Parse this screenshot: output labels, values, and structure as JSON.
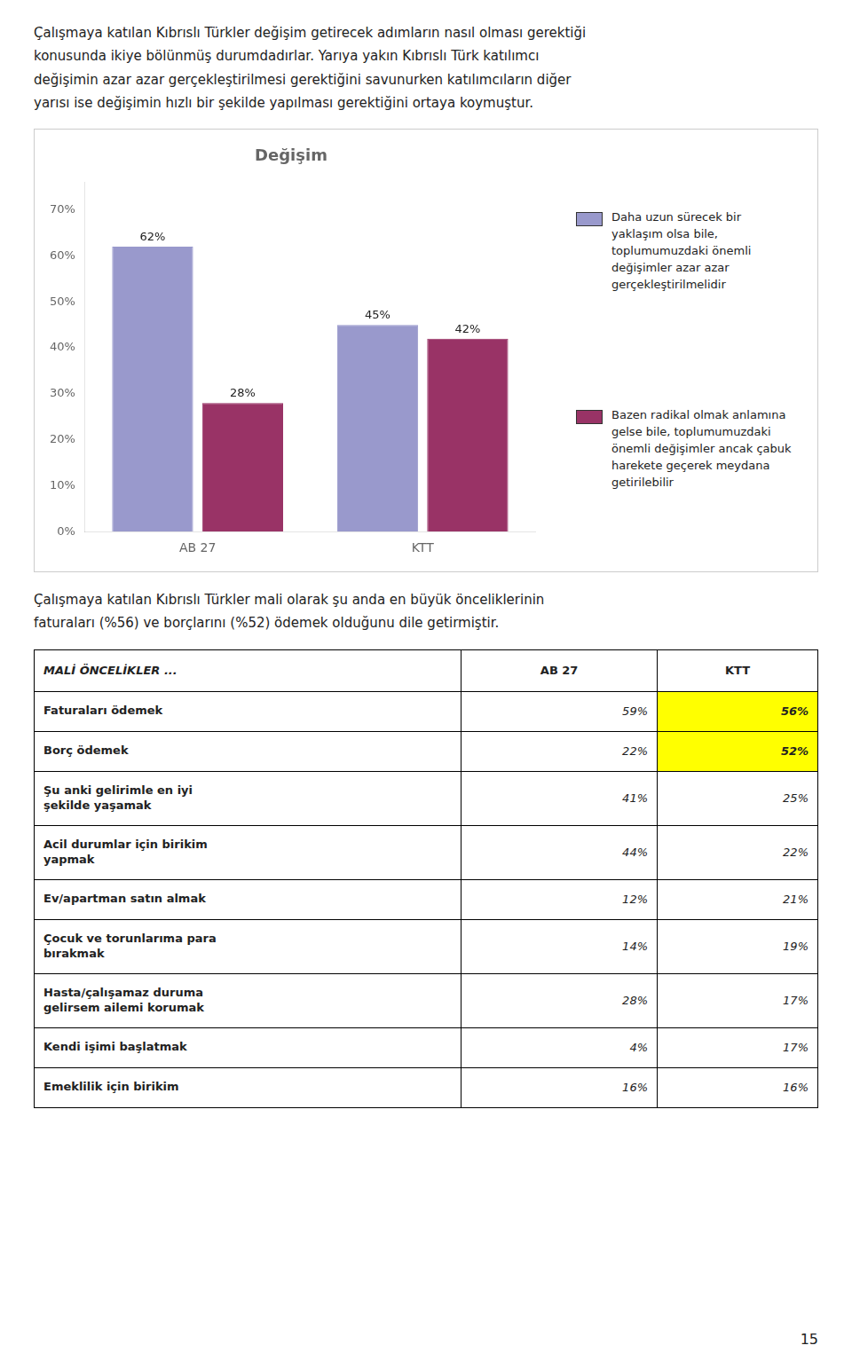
{
  "intro_text": [
    "Çalışmaya katılan Kıbrıslı Türkler değişim getirecek adımların nasıl olması gerektiği",
    "konusunda ikiye bölünmüş durumdadırlar.  Yarıya yakın Kıbrıslı Türk katılımcı",
    "değişimin azar azar gerçekleştirilmesi gerektiğini savunurken katılımcıların diğer",
    "yarısı ise değişimin hızlı bir şekilde yapılması gerektiğini ortaya koymuştur."
  ],
  "chart_data": {
    "type": "bar",
    "title": "Değişim",
    "categories": [
      "AB 27",
      "KTT"
    ],
    "series": [
      {
        "name": "Daha uzun sürecek bir yaklaşım olsa bile, toplumumuzdaki önemli değişimler azar azar gerçekleştirilmelidir",
        "color": "#9999cc",
        "values": [
          0.62,
          0.45
        ],
        "value_labels": [
          "62%",
          "45%"
        ]
      },
      {
        "name": "Bazen radikal olmak anlamına gelse bile, toplumumuzdaki önemli değişimler ancak çabuk harekete geçerek meydana getirilebilir",
        "color": "#993366",
        "values": [
          0.28,
          0.42
        ],
        "value_labels": [
          "28%",
          "42%"
        ]
      }
    ],
    "ylim": [
      0,
      0.76
    ],
    "yticks": [
      {
        "value": 0.0,
        "label": "0%"
      },
      {
        "value": 0.1,
        "label": "10%"
      },
      {
        "value": 0.2,
        "label": "20%"
      },
      {
        "value": 0.3,
        "label": "30%"
      },
      {
        "value": 0.4,
        "label": "40%"
      },
      {
        "value": 0.5,
        "label": "50%"
      },
      {
        "value": 0.6,
        "label": "60%"
      },
      {
        "value": 0.7,
        "label": "70%"
      }
    ],
    "grid": false,
    "data_labels": true,
    "legend": "right"
  },
  "paragraph": [
    "Çalışmaya katılan Kıbrıslı Türkler mali olarak şu anda en büyük önceliklerinin",
    "faturaları (%56) ve borçlarını (%52) ödemek olduğunu dile getirmiştir."
  ],
  "table": {
    "header": [
      "MALİ ÖNCELİKLER ...",
      "AB 27",
      "KTT"
    ],
    "rows": [
      [
        "Faturaları ödemek",
        "59%",
        "56%"
      ],
      [
        "Borç ödemek",
        "22%",
        "52%"
      ],
      [
        "Şu anki gelirimle en iyi\nşekilde yaşamak",
        "41%",
        "25%"
      ],
      [
        "Acil durumlar için birikim\nyapmak",
        "44%",
        "22%"
      ],
      [
        "Ev/apartman satın almak",
        "12%",
        "21%"
      ],
      [
        "Çocuk ve torunlarıma para\nbırakmak",
        "14%",
        "19%"
      ],
      [
        "Hasta/çalışamaz duruma\ngelirsem ailemi korumak",
        "28%",
        "17%"
      ],
      [
        "Kendi işimi başlatmak",
        "4%",
        "17%"
      ],
      [
        "Emeklilik için birikim",
        "16%",
        "16%"
      ]
    ],
    "highlight_rows": [
      0,
      1
    ],
    "highlight_color": "#ffff00"
  },
  "page_number": "15"
}
